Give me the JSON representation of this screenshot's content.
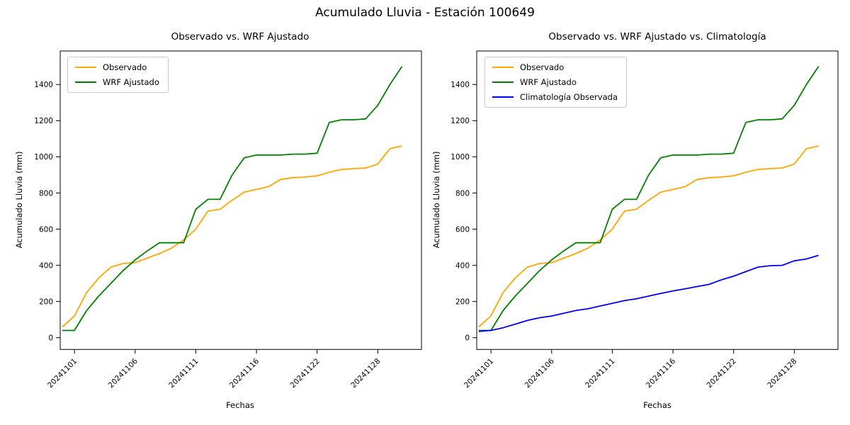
{
  "suptitle": "Acumulado Lluvia - Estación 100649",
  "chart_data": [
    {
      "type": "line",
      "title": "Observado vs. WRF Ajustado",
      "xlabel": "Fechas",
      "ylabel": "Acumulado Lluvia (mm)",
      "grid": false,
      "legend_position": "upper-left",
      "yticks": [
        0,
        200,
        400,
        600,
        800,
        1000,
        1200,
        1400
      ],
      "ylim": [
        -65,
        1585
      ],
      "n_points": 29,
      "xtick_labels": [
        "20241101",
        "20241106",
        "20241111",
        "20241116",
        "20241122",
        "20241128"
      ],
      "xtick_indices": [
        1,
        6,
        11,
        16,
        21,
        26
      ],
      "series": [
        {
          "name": "Observado",
          "color": "#ffa500",
          "values": [
            60,
            120,
            250,
            330,
            390,
            410,
            415,
            440,
            465,
            495,
            540,
            600,
            700,
            710,
            760,
            805,
            820,
            835,
            875,
            885,
            888,
            895,
            915,
            930,
            935,
            938,
            960,
            1045,
            1060
          ]
        },
        {
          "name": "WRF Ajustado",
          "color": "#008000",
          "values": [
            40,
            40,
            150,
            230,
            300,
            370,
            430,
            480,
            525,
            525,
            525,
            710,
            765,
            765,
            900,
            995,
            1010,
            1010,
            1010,
            1015,
            1015,
            1020,
            1190,
            1205,
            1205,
            1210,
            1285,
            1400,
            1500
          ]
        }
      ]
    },
    {
      "type": "line",
      "title": "Observado vs. WRF Ajustado vs. Climatología",
      "xlabel": "Fechas",
      "ylabel": "Acumulado Lluvia (mm)",
      "grid": false,
      "legend_position": "upper-left",
      "yticks": [
        0,
        200,
        400,
        600,
        800,
        1000,
        1200,
        1400
      ],
      "ylim": [
        -65,
        1585
      ],
      "n_points": 29,
      "xtick_labels": [
        "20241101",
        "20241106",
        "20241111",
        "20241116",
        "20241122",
        "20241128"
      ],
      "xtick_indices": [
        1,
        6,
        11,
        16,
        21,
        26
      ],
      "series": [
        {
          "name": "Observado",
          "color": "#ffa500",
          "values": [
            60,
            120,
            250,
            330,
            390,
            410,
            415,
            440,
            465,
            495,
            540,
            600,
            700,
            710,
            760,
            805,
            820,
            835,
            875,
            885,
            888,
            895,
            915,
            930,
            935,
            938,
            960,
            1045,
            1060
          ]
        },
        {
          "name": "WRF Ajustado",
          "color": "#008000",
          "values": [
            40,
            40,
            150,
            230,
            300,
            370,
            430,
            480,
            525,
            525,
            525,
            710,
            765,
            765,
            900,
            995,
            1010,
            1010,
            1010,
            1015,
            1015,
            1020,
            1190,
            1205,
            1205,
            1210,
            1285,
            1400,
            1500
          ]
        },
        {
          "name": "Climatología Observada",
          "color": "#0000ff",
          "values": [
            35,
            40,
            55,
            75,
            95,
            110,
            120,
            135,
            150,
            160,
            175,
            190,
            205,
            215,
            230,
            245,
            258,
            270,
            283,
            295,
            320,
            340,
            365,
            390,
            398,
            400,
            425,
            435,
            455
          ]
        }
      ]
    }
  ]
}
